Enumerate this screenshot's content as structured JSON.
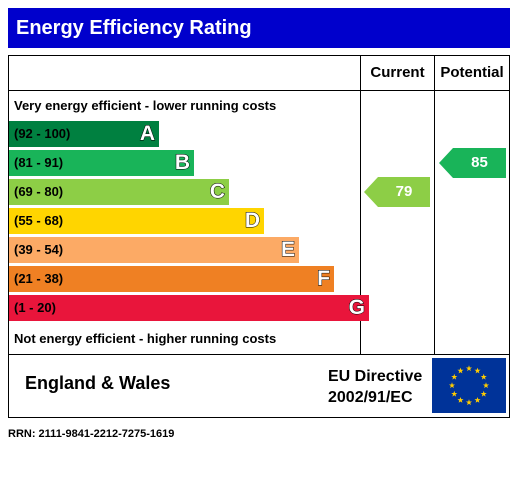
{
  "header": {
    "title": "Energy Efficiency Rating"
  },
  "columns": {
    "current": "Current",
    "potential": "Potential"
  },
  "captions": {
    "top": "Very energy efficient - lower running costs",
    "bottom": "Not energy efficient - higher running costs"
  },
  "chart_data": {
    "type": "bar",
    "title": "Energy Efficiency Rating",
    "bands": [
      {
        "letter": "A",
        "range": "(92 - 100)",
        "color": "#008040"
      },
      {
        "letter": "B",
        "range": "(81 - 91)",
        "color": "#19b459"
      },
      {
        "letter": "C",
        "range": "(69 - 80)",
        "color": "#8dce46"
      },
      {
        "letter": "D",
        "range": "(55 - 68)",
        "color": "#ffd500"
      },
      {
        "letter": "E",
        "range": "(39 - 54)",
        "color": "#fcaa65"
      },
      {
        "letter": "F",
        "range": "(21 - 38)",
        "color": "#ef8023"
      },
      {
        "letter": "G",
        "range": "(1 - 20)",
        "color": "#e9153b"
      }
    ],
    "current": {
      "value": 79,
      "band": "C",
      "color": "#8dce46"
    },
    "potential": {
      "value": 85,
      "band": "B",
      "color": "#19b459"
    }
  },
  "footer": {
    "region": "England & Wales",
    "directive_line1": "EU Directive",
    "directive_line2": "2002/91/EC",
    "flag_colors": {
      "field": "#003399",
      "stars": "#ffcc00"
    }
  },
  "rrn": "RRN: 2111-9841-2212-7275-1619"
}
